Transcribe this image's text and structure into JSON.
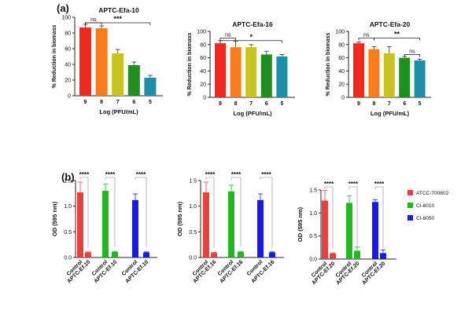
{
  "panel_labels": [
    "(a)",
    "(b)"
  ],
  "legend": [
    {
      "label": "ATCC-700802",
      "color": "#e8403f"
    },
    {
      "label": "CI-8010",
      "color": "#1fb81f"
    },
    {
      "label": "CI-8050",
      "color": "#1a1ae6"
    }
  ],
  "chart_data": [
    {
      "type": "bar",
      "title": "APTC-Efa-10",
      "xlabel": "Log (PFU/mL)",
      "ylabel": "% Reduction in biomass",
      "ylim": [
        0,
        100
      ],
      "yticks": [
        "0",
        "20",
        "40",
        "60",
        "80",
        "100"
      ],
      "categories": [
        "9",
        "8",
        "7",
        "6",
        "5"
      ],
      "values": [
        87,
        86,
        54,
        39,
        23
      ],
      "errors": [
        4,
        3,
        5,
        4,
        3
      ],
      "colors": [
        "#f2271d",
        "#fb7a1a",
        "#c9c21f",
        "#1f8f1f",
        "#1d8fa6"
      ],
      "annotations": [
        "ns",
        "***"
      ]
    },
    {
      "type": "bar",
      "title": "APTC-Efa-16",
      "xlabel": "Log (PFU/mL)",
      "ylabel": "% Reduction in biomass",
      "ylim": [
        0,
        100
      ],
      "yticks": [
        "0",
        "20",
        "40",
        "60",
        "80",
        "100"
      ],
      "categories": [
        "9",
        "8",
        "7",
        "6",
        "5"
      ],
      "values": [
        82,
        76,
        76,
        65,
        62
      ],
      "errors": [
        4,
        9,
        4,
        5,
        3
      ],
      "colors": [
        "#f2271d",
        "#fb7a1a",
        "#c9c21f",
        "#1f8f1f",
        "#1d8fa6"
      ],
      "annotations": [
        "ns",
        "*"
      ]
    },
    {
      "type": "bar",
      "title": "APTC-Efa-20",
      "xlabel": "Log (PFU/mL)",
      "ylabel": "% Reduction in biomass",
      "ylim": [
        0,
        100
      ],
      "yticks": [
        "0",
        "20",
        "40",
        "60",
        "80",
        "100"
      ],
      "categories": [
        "9",
        "8",
        "7",
        "6",
        "5"
      ],
      "values": [
        82,
        73,
        67,
        60,
        56
      ],
      "errors": [
        2,
        4,
        10,
        2,
        2
      ],
      "colors": [
        "#f2271d",
        "#fb7a1a",
        "#c9c21f",
        "#1f8f1f",
        "#1d8fa6"
      ],
      "annotations": [
        "ns",
        "**",
        "ns"
      ]
    },
    {
      "type": "bar",
      "title": "",
      "ylabel": "OD (595 nm)",
      "ylim": [
        0,
        1.5
      ],
      "yticks": [
        "0.0",
        "0.5",
        "1.0",
        "1.5"
      ],
      "categories": [
        "Control",
        "APTC-Ef.10",
        "Control",
        "APTC-Ef.10",
        "Control",
        "APTC-Ef.10"
      ],
      "values": [
        1.27,
        0.1,
        1.3,
        0.11,
        1.12,
        0.1
      ],
      "errors": [
        0.2,
        0.01,
        0.13,
        0.01,
        0.12,
        0.01
      ],
      "colors": [
        "#e8403f",
        "#e8403f",
        "#1fb81f",
        "#1fb81f",
        "#1a1ae6",
        "#1a1ae6"
      ],
      "annotations": [
        "****",
        "****",
        "****"
      ]
    },
    {
      "type": "bar",
      "title": "",
      "ylabel": "OD (595 nm)",
      "ylim": [
        0,
        1.5
      ],
      "yticks": [
        "0.0",
        "0.5",
        "1.0",
        "1.5"
      ],
      "categories": [
        "Control",
        "APTC-Ef.16",
        "Control",
        "APTC-Ef.16",
        "Control",
        "APTC-Ef.16"
      ],
      "values": [
        1.27,
        0.09,
        1.29,
        0.11,
        1.12,
        0.1
      ],
      "errors": [
        0.2,
        0.01,
        0.12,
        0.01,
        0.12,
        0.01
      ],
      "colors": [
        "#e8403f",
        "#e8403f",
        "#1fb81f",
        "#1fb81f",
        "#1a1ae6",
        "#1a1ae6"
      ],
      "annotations": [
        "****",
        "****",
        "****"
      ]
    },
    {
      "type": "bar",
      "title": "",
      "ylabel": "OD (595 nm)",
      "ylim": [
        0,
        1.5
      ],
      "yticks": [
        "0.0",
        "0.5",
        "1.0",
        "1.5"
      ],
      "categories": [
        "Control",
        "APTC-Ef.20",
        "Control",
        "APTC-Ef.20",
        "Control",
        "APTC-Ef.20"
      ],
      "values": [
        1.27,
        0.12,
        1.22,
        0.18,
        1.24,
        0.13
      ],
      "errors": [
        0.22,
        0.01,
        0.15,
        0.08,
        0.05,
        0.07
      ],
      "colors": [
        "#e8403f",
        "#e8403f",
        "#1fb81f",
        "#1fb81f",
        "#1a1ae6",
        "#1a1ae6"
      ],
      "annotations": [
        "****",
        "****",
        "****"
      ]
    }
  ]
}
